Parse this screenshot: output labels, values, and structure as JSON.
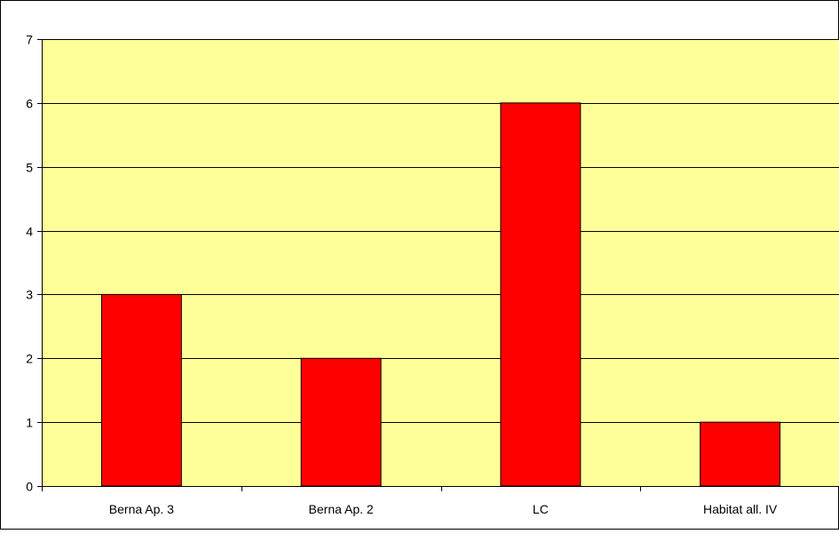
{
  "chart_data": {
    "type": "bar",
    "categories": [
      "Berna Ap. 3",
      "Berna Ap. 2",
      "LC",
      "Habitat all. IV"
    ],
    "values": [
      3,
      2,
      6,
      1
    ],
    "title": "",
    "xlabel": "",
    "ylabel": "",
    "ylim": [
      0,
      7
    ],
    "yticks": [
      "0",
      "1",
      "2",
      "3",
      "4",
      "5",
      "6",
      "7"
    ],
    "grid": true,
    "legend": "none",
    "colors": {
      "bar": "#ff0000",
      "plot_background": "#ffff99",
      "gridline": "#000000"
    }
  }
}
